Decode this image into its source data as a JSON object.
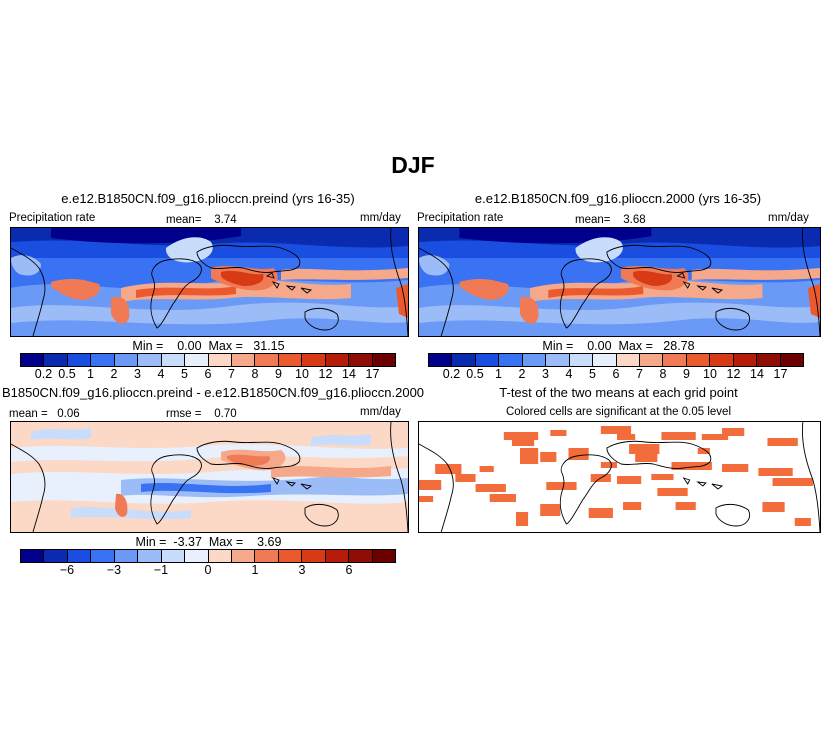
{
  "title": "DJF",
  "panels": [
    {
      "title": "e.e12.B1850CN.f09_g16.plioccn.preind (yrs 16-35)",
      "label_left": "Precipitation rate",
      "mean_text": "mean=    3.74",
      "units": "mm/day",
      "minmax": "Min =    0.00  Max =   31.15"
    },
    {
      "title": "e.e12.B1850CN.f09_g16.plioccn.2000 (yrs 16-35)",
      "label_left": "Precipitation rate",
      "mean_text": "mean=    3.68",
      "units": "mm/day",
      "minmax": "Min =    0.00  Max =   28.78"
    },
    {
      "title": "B1850CN.f09_g16.plioccn.preind - e.e12.B1850CN.f09_g16.plioccn.2000",
      "label_left": "mean =   0.06",
      "mean_text": "rmse =    0.70",
      "units": "mm/day",
      "minmax": "Min =  -3.37  Max =    3.69"
    },
    {
      "title": "T-test of the two means at each grid point",
      "subtitle": "Colored cells are significant at the 0.05 level"
    }
  ],
  "colorbars": {
    "precip": {
      "colors": [
        "#00008c",
        "#0a2bb0",
        "#1a4ee0",
        "#3a72f4",
        "#6a9af6",
        "#9cbcf8",
        "#c8dcfb",
        "#e8f0fd",
        "#fbd9c6",
        "#f5a98a",
        "#ef7a55",
        "#ea5a2e",
        "#d83a15",
        "#b51c0a",
        "#8e0d05",
        "#6a0000"
      ],
      "ticks": [
        "0.2",
        "0.5",
        "1",
        "2",
        "3",
        "4",
        "5",
        "6",
        "7",
        "8",
        "9",
        "10",
        "12",
        "14",
        "17"
      ]
    },
    "diff": {
      "colors": [
        "#00008c",
        "#0a2bb0",
        "#1a4ee0",
        "#3a72f4",
        "#6a9af6",
        "#9cbcf8",
        "#c8dcfb",
        "#e8f0fd",
        "#fbd9c6",
        "#f5a98a",
        "#ef7a55",
        "#ea5a2e",
        "#d83a15",
        "#b51c0a",
        "#8e0d05",
        "#6a0000"
      ],
      "ticks": [
        "−6",
        "−3",
        "−1",
        "0",
        "1",
        "3",
        "6"
      ]
    }
  },
  "significance_color": "#f26c3c"
}
